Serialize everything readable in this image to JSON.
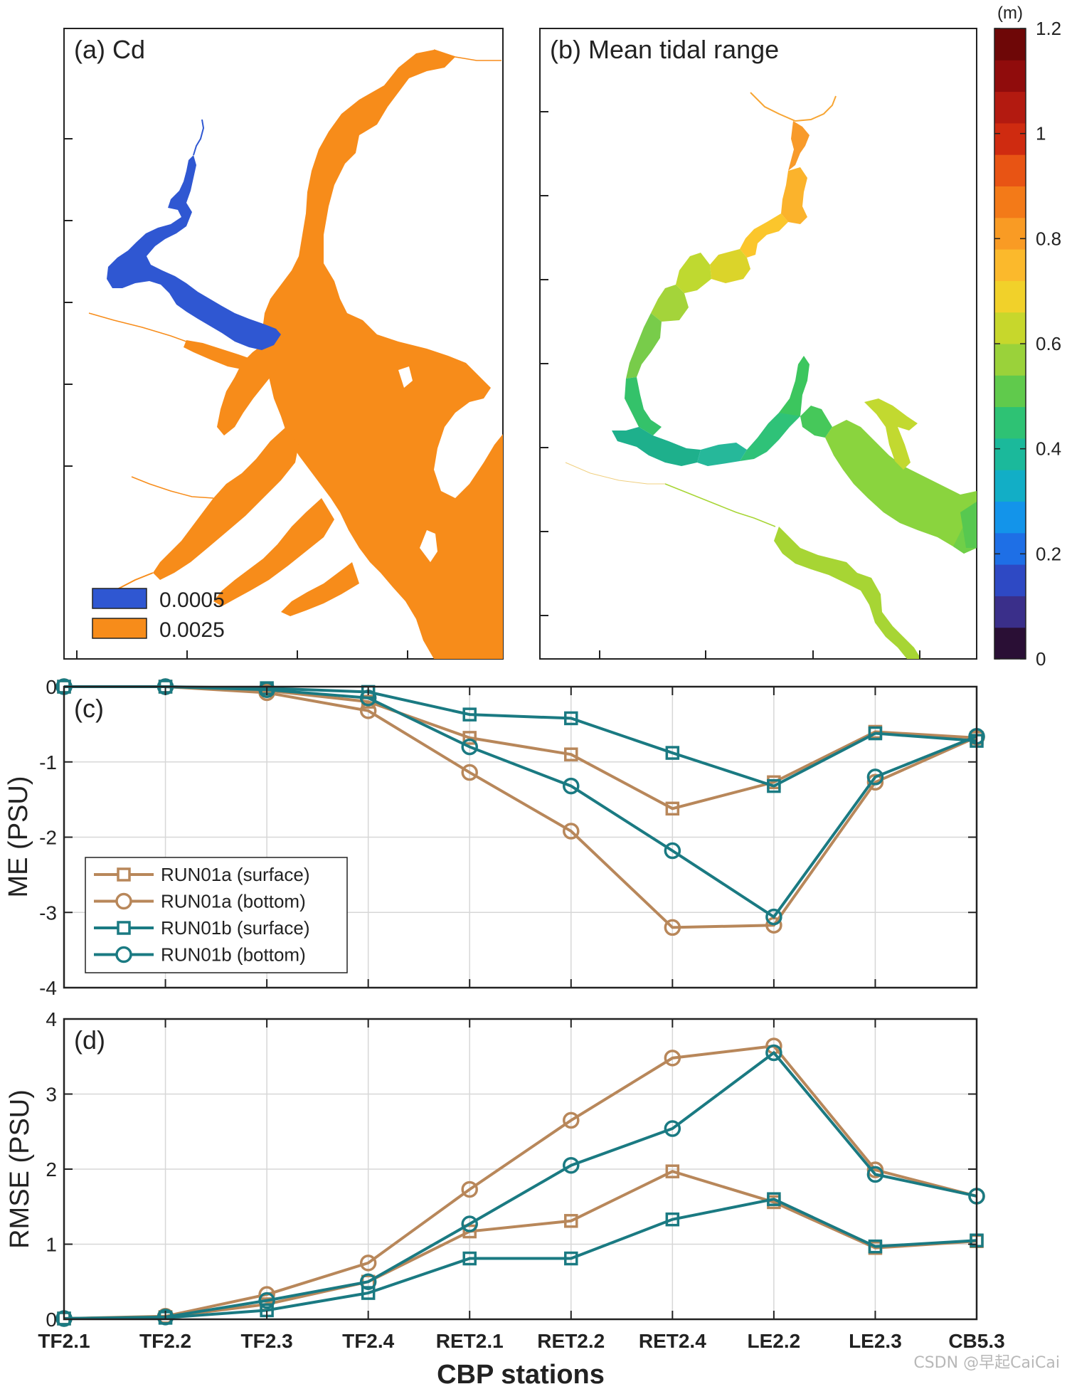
{
  "map_a": {
    "label": "(a) Cd",
    "legend": [
      {
        "label": "0.0005",
        "color": "#2f57d2"
      },
      {
        "label": "0.0025",
        "color": "#f78c1a"
      }
    ]
  },
  "map_b": {
    "label": "(b) Mean tidal range"
  },
  "colorbar": {
    "unit": "(m)",
    "ticks": [
      "0",
      "0.2",
      "0.4",
      "0.6",
      "0.8",
      "1",
      "1.2"
    ],
    "range": [
      0,
      1.2
    ]
  },
  "chart_data": [
    {
      "type": "line",
      "panel_label": "(c)",
      "ylabel": "ME (PSU)",
      "ylim": [
        -4,
        0
      ],
      "yticks": [
        "0",
        "-1",
        "-2",
        "-3",
        "-4"
      ],
      "grid": true,
      "legend_position": "lower-left",
      "categories": [
        "TF2.1",
        "TF2.2",
        "TF2.3",
        "TF2.4",
        "RET2.1",
        "RET2.2",
        "RET2.4",
        "LE2.2",
        "LE2.3",
        "CB5.3"
      ],
      "series": [
        {
          "name": "RUN01a (surface)",
          "marker": "square",
          "color": "#b8875a",
          "values": [
            0,
            0,
            -0.05,
            -0.2,
            -0.68,
            -0.9,
            -1.62,
            -1.27,
            -0.6,
            -0.68
          ]
        },
        {
          "name": "RUN01a (bottom)",
          "marker": "circle",
          "color": "#b8875a",
          "values": [
            0,
            0,
            -0.08,
            -0.32,
            -1.14,
            -1.92,
            -3.2,
            -3.17,
            -1.27,
            -0.67
          ]
        },
        {
          "name": "RUN01b (surface)",
          "marker": "square",
          "color": "#1a7a82",
          "values": [
            0,
            0,
            -0.02,
            -0.07,
            -0.37,
            -0.42,
            -0.88,
            -1.32,
            -0.62,
            -0.72
          ]
        },
        {
          "name": "RUN01b (bottom)",
          "marker": "circle",
          "color": "#1a7a82",
          "values": [
            0,
            0,
            -0.04,
            -0.15,
            -0.8,
            -1.32,
            -2.18,
            -3.06,
            -1.2,
            -0.66
          ]
        }
      ]
    },
    {
      "type": "line",
      "panel_label": "(d)",
      "ylabel": "RMSE (PSU)",
      "xlabel": "CBP stations",
      "ylim": [
        0,
        4
      ],
      "yticks": [
        "0",
        "1",
        "2",
        "3",
        "4"
      ],
      "grid": true,
      "categories": [
        "TF2.1",
        "TF2.2",
        "TF2.3",
        "TF2.4",
        "RET2.1",
        "RET2.2",
        "RET2.4",
        "LE2.2",
        "LE2.3",
        "CB5.3"
      ],
      "series": [
        {
          "name": "RUN01a (surface)",
          "marker": "square",
          "color": "#b8875a",
          "values": [
            0.01,
            0.03,
            0.2,
            0.5,
            1.17,
            1.31,
            1.97,
            1.56,
            0.95,
            1.04
          ]
        },
        {
          "name": "RUN01a (bottom)",
          "marker": "circle",
          "color": "#b8875a",
          "values": [
            0.01,
            0.04,
            0.33,
            0.75,
            1.73,
            2.65,
            3.48,
            3.64,
            1.99,
            1.64
          ]
        },
        {
          "name": "RUN01b (surface)",
          "marker": "square",
          "color": "#1a7a82",
          "values": [
            0.01,
            0.02,
            0.12,
            0.35,
            0.81,
            0.81,
            1.33,
            1.6,
            0.97,
            1.05
          ]
        },
        {
          "name": "RUN01b (bottom)",
          "marker": "circle",
          "color": "#1a7a82",
          "values": [
            0.01,
            0.03,
            0.25,
            0.5,
            1.27,
            2.05,
            2.54,
            3.55,
            1.93,
            1.64
          ]
        }
      ]
    }
  ],
  "watermark": "CSDN @早起CaiCai"
}
